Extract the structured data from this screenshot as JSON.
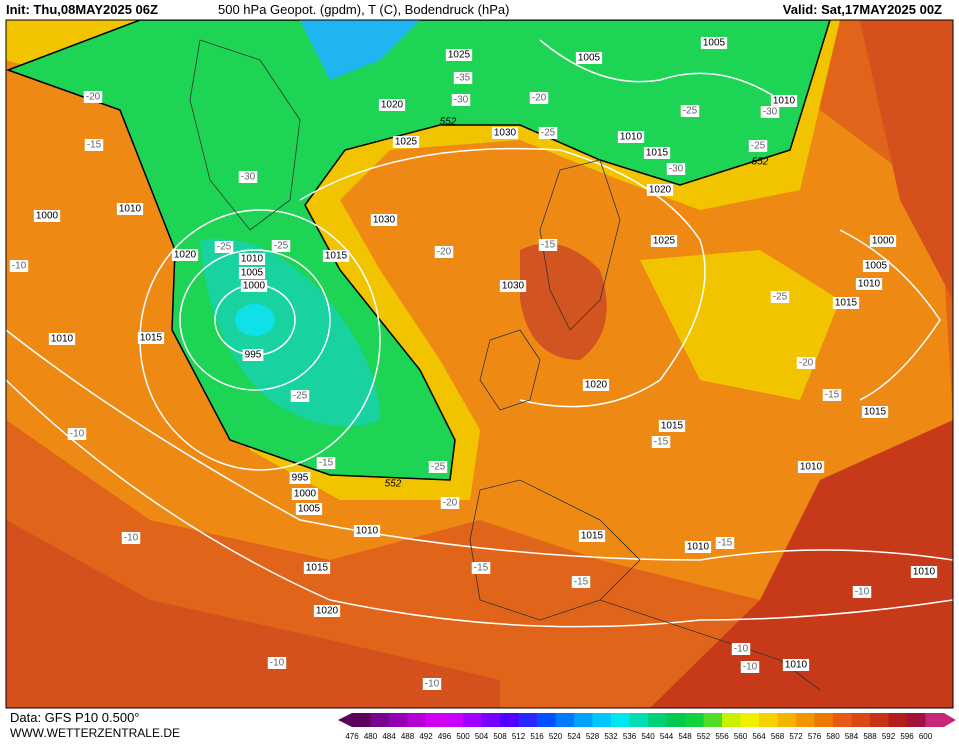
{
  "header": {
    "init": "Init: Thu,08MAY2025 06Z",
    "title": "500 hPa Geopot. (gpdm), T (C), Bodendruck (hPa)",
    "valid": "Valid: Sat,17MAY2025 00Z"
  },
  "footer": {
    "data_source": "Data: GFS P10 0.500°",
    "website": "WWW.WETTERZENTRALE.DE"
  },
  "colorbar": {
    "levels": [
      476,
      480,
      484,
      488,
      492,
      496,
      500,
      504,
      508,
      512,
      516,
      520,
      524,
      528,
      532,
      536,
      540,
      544,
      548,
      552,
      556,
      560,
      564,
      568,
      572,
      576,
      580,
      584,
      588,
      592,
      596,
      600
    ],
    "colors": [
      "#5a005a",
      "#78008c",
      "#9600b4",
      "#b400d2",
      "#d200f0",
      "#c800ff",
      "#a000ff",
      "#7800ff",
      "#5000ff",
      "#2828ff",
      "#0050ff",
      "#0078ff",
      "#00a0ff",
      "#00c8ff",
      "#00e6f0",
      "#00dcb4",
      "#00d278",
      "#00c850",
      "#14d23c",
      "#50dc28",
      "#c8f000",
      "#f0f000",
      "#f5d200",
      "#f5b400",
      "#f09600",
      "#eb7800",
      "#e65a14",
      "#dc4614",
      "#c83214",
      "#b41e1e",
      "#a0143c",
      "#c8287a"
    ]
  },
  "map": {
    "pressure_labels": [
      "1025",
      "1005",
      "1005",
      "1010",
      "1020",
      "1025",
      "1030",
      "1010",
      "1015",
      "1020",
      "1010",
      "1000",
      "1020",
      "1030",
      "1015",
      "1010",
      "1005",
      "1000",
      "995",
      "1025",
      "1030",
      "1000",
      "1005",
      "1010",
      "1015",
      "1010",
      "1015",
      "1020",
      "1015",
      "1015",
      "1010",
      "995",
      "1000",
      "1005",
      "1010",
      "1015",
      "1010",
      "1015",
      "1020",
      "1010",
      "1010"
    ],
    "temperature_labels": [
      "-20",
      "-15",
      "-30",
      "-25",
      "-25",
      "-10",
      "-35",
      "-30",
      "-20",
      "-25",
      "-25",
      "-30",
      "-25",
      "-30",
      "-20",
      "-15",
      "-25",
      "-20",
      "-15",
      "-25",
      "-15",
      "-25",
      "-20",
      "-15",
      "-10",
      "-10",
      "-15",
      "-15",
      "-15",
      "-10",
      "-10",
      "-10",
      "-10",
      "-10"
    ],
    "geopotential_labels": [
      "552",
      "552",
      "552"
    ]
  }
}
